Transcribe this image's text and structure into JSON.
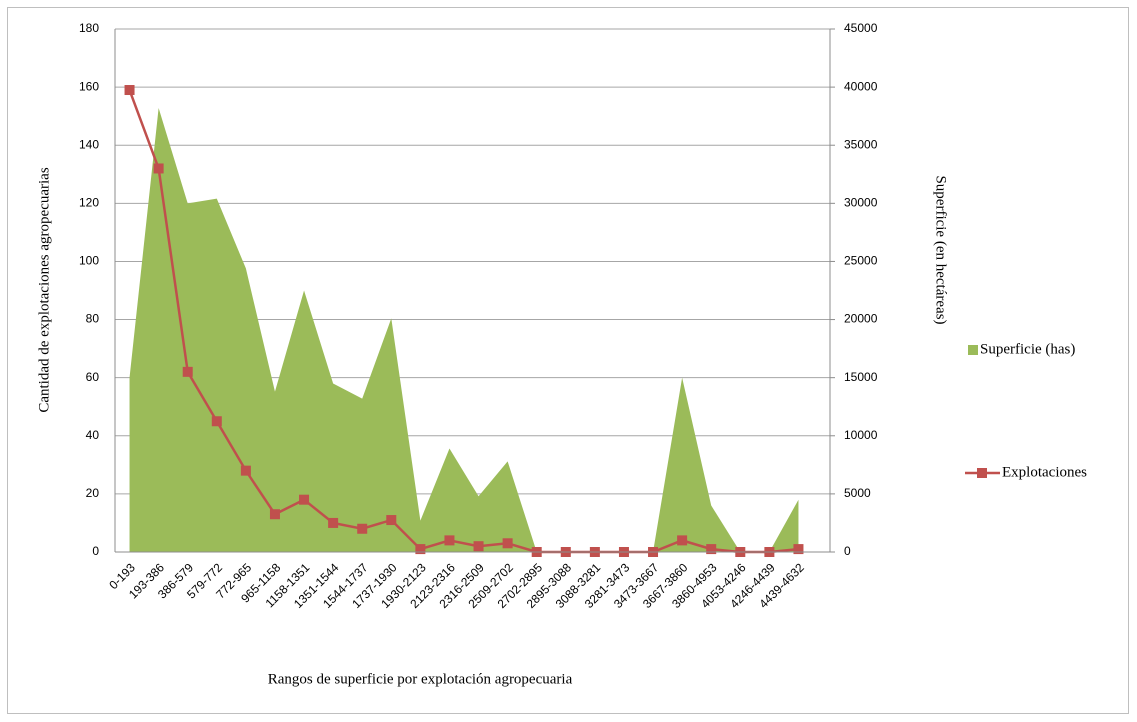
{
  "chart_data": {
    "type": "combo",
    "xlabel": "Rangos de superficie por explotación agropecuaria",
    "ylabel": "Cantidad de explotaciones agropecuarias",
    "y2label": "Superficie (en hectáreas)",
    "categories": [
      "0-193",
      "193-386",
      "386-579",
      "579-772",
      "772-965",
      "965-1158",
      "1158-1351",
      "1351-1544",
      "1544-1737",
      "1737-1930",
      "1930-2123",
      "2123-2316",
      "2316-2509",
      "2509-2702",
      "2702-2895",
      "2895-3088",
      "3088-3281",
      "3281-3473",
      "3473-3667",
      "3667-3860",
      "3860-4953",
      "4053-4246",
      "4246-4439",
      "4439-4632"
    ],
    "series": [
      {
        "name": "Superficie (has)",
        "type": "area",
        "axis": "y2",
        "color": "#9bbb59",
        "values": [
          15000,
          38200,
          30000,
          30400,
          24400,
          13800,
          22500,
          14500,
          13200,
          20100,
          2700,
          8900,
          4800,
          7800,
          0,
          0,
          0,
          0,
          0,
          15000,
          4000,
          0,
          0,
          4500
        ]
      },
      {
        "name": "Explotaciones",
        "type": "line",
        "axis": "y",
        "color": "#c0504d",
        "values": [
          159,
          132,
          62,
          45,
          28,
          13,
          18,
          10,
          8,
          11,
          1,
          4,
          2,
          3,
          0,
          0,
          0,
          0,
          0,
          4,
          1,
          0,
          0,
          1
        ]
      }
    ],
    "ylim": [
      0,
      180
    ],
    "yticks": [
      0,
      20,
      40,
      60,
      80,
      100,
      120,
      140,
      160,
      180
    ],
    "y2lim": [
      0,
      45000
    ],
    "y2ticks": [
      0,
      5000,
      10000,
      15000,
      20000,
      25000,
      30000,
      35000,
      40000,
      45000
    ],
    "grid": true,
    "legend": "right"
  }
}
